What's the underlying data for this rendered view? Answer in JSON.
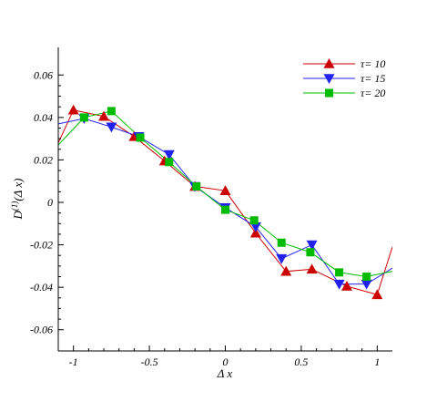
{
  "chart_data": {
    "type": "line",
    "xlabel": "Δ x",
    "ylabel": "D(1)(Δ x)",
    "ylabel_main": "D",
    "ylabel_sup": "(1)",
    "ylabel_rest": "(Δ x)",
    "xlim": [
      -1.1,
      1.1
    ],
    "ylim": [
      -0.07,
      0.073
    ],
    "xticks": [
      -1,
      -0.5,
      0,
      0.5,
      1
    ],
    "xtick_labels": [
      "-1",
      "-0.5",
      "0",
      "0.5",
      "1"
    ],
    "yticks": [
      -0.06,
      -0.04,
      -0.02,
      0,
      0.02,
      0.04,
      0.06
    ],
    "ytick_labels": [
      "-0.06",
      "-0.04",
      "-0.02",
      "0",
      "0.02",
      "0.04",
      "0.06"
    ],
    "grid": false,
    "legend_position": "top-right",
    "series": [
      {
        "name": "τ= 10",
        "marker": "triangle-up",
        "color": "#cc0000",
        "points": [
          [
            -1.1,
            0.028
          ],
          [
            -1.0,
            0.0435
          ],
          [
            -0.8,
            0.0405
          ],
          [
            -0.6,
            0.031
          ],
          [
            -0.4,
            0.0195
          ],
          [
            -0.2,
            0.0075
          ],
          [
            0.0,
            0.0055
          ],
          [
            0.2,
            -0.0145
          ],
          [
            0.4,
            -0.0325
          ],
          [
            0.57,
            -0.0315
          ],
          [
            0.8,
            -0.0395
          ],
          [
            1.0,
            -0.0435
          ],
          [
            1.1,
            -0.021
          ]
        ]
      },
      {
        "name": "τ= 15",
        "marker": "triangle-down",
        "color": "#2222ee",
        "points": [
          [
            -1.1,
            0.037
          ],
          [
            -0.93,
            0.0395
          ],
          [
            -0.75,
            0.0355
          ],
          [
            -0.57,
            0.031
          ],
          [
            -0.37,
            0.0225
          ],
          [
            -0.2,
            0.0075
          ],
          [
            0.0,
            -0.0025
          ],
          [
            0.2,
            -0.0115
          ],
          [
            0.37,
            -0.0265
          ],
          [
            0.57,
            -0.02
          ],
          [
            0.75,
            -0.0385
          ],
          [
            0.93,
            -0.0385
          ],
          [
            1.1,
            -0.031
          ]
        ]
      },
      {
        "name": "τ= 20",
        "marker": "square",
        "color": "#00bb00",
        "points": [
          [
            -1.1,
            0.027
          ],
          [
            -0.93,
            0.04
          ],
          [
            -0.75,
            0.043
          ],
          [
            -0.56,
            0.0305
          ],
          [
            -0.37,
            0.019
          ],
          [
            -0.19,
            0.0075
          ],
          [
            0.0,
            -0.0035
          ],
          [
            0.19,
            -0.0085
          ],
          [
            0.37,
            -0.019
          ],
          [
            0.56,
            -0.0235
          ],
          [
            0.75,
            -0.033
          ],
          [
            0.93,
            -0.035
          ],
          [
            1.1,
            -0.0325
          ]
        ]
      }
    ]
  }
}
